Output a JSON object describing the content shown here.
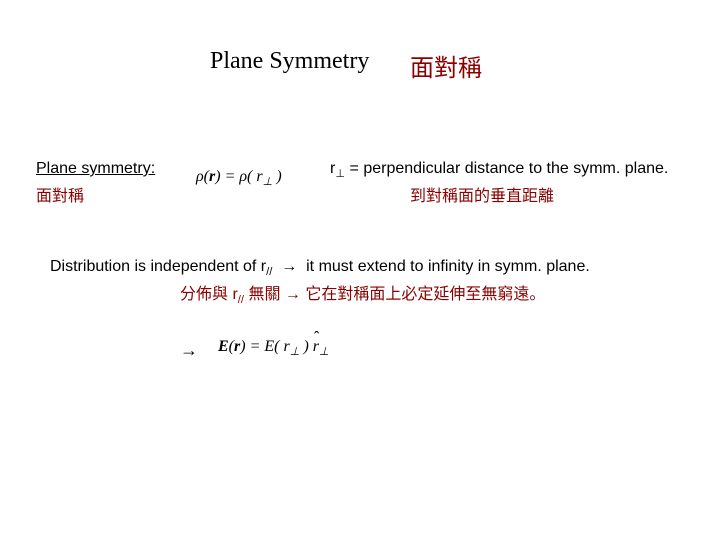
{
  "title_en": "Plane Symmetry",
  "title_zh": "面對稱",
  "label_en": "Plane symmetry:",
  "label_zh": "面對稱",
  "eq1_html": "ρ(<b>r</b>) = ρ( r<sub>⊥</sub> )",
  "perp_desc_html": "r<sub>⊥</sub> = perpendicular distance to the symm. plane.",
  "perp_desc_zh": "到對稱面的垂直距離",
  "dist_line_html": "Distribution is independent of r<sub>//</sub>&nbsp;&nbsp;→&nbsp;&nbsp;it must extend to infinity in symm. plane.",
  "dist_line_zh_html": "分佈與  r<sub>//</sub> 無關  →  它在對稱面上必定延伸至無窮遠。",
  "arrow": "→",
  "eq2_html": "<b>E</b>(<b>r</b>) = E( r<sub>⊥</sub> ) <span class=\"hat\">r</span><sub>⊥</sub>",
  "colors": {
    "zh_text": "#8b0000",
    "en_text": "#000000",
    "background": "#ffffff"
  },
  "fontsizes": {
    "title": 24,
    "body": 16
  }
}
